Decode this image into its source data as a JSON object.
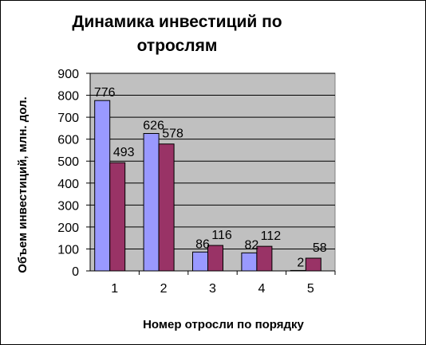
{
  "chart_data": {
    "type": "bar",
    "title_lines": [
      "Динамика инвестиций по",
      "отрослям"
    ],
    "xlabel": "Номер отросли по порядку",
    "ylabel": "Объем инвестиций, млн. дол.",
    "categories": [
      "1",
      "2",
      "3",
      "4",
      "5"
    ],
    "series": [
      {
        "values": [
          776,
          626,
          86,
          82,
          2
        ],
        "color": "#9999ff"
      },
      {
        "values": [
          493,
          578,
          116,
          112,
          58
        ],
        "color": "#993366"
      }
    ],
    "ylim": [
      0,
      900
    ],
    "yticks": [
      0,
      100,
      200,
      300,
      400,
      500,
      600,
      700,
      800,
      900
    ],
    "plot_background": "#c0c0c0",
    "grid": true,
    "legend": "none"
  }
}
